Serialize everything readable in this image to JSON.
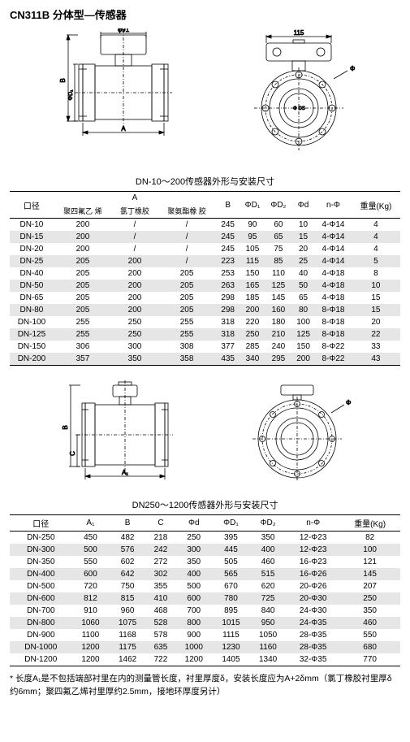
{
  "title": "CN311B 分体型—传感器",
  "diagram1": {
    "top_dim": "φ91",
    "bottom_dim": "A",
    "left_dim_outer": "B",
    "left_dim_inner": "ΦD₁"
  },
  "diagram2": {
    "top_dim": "115",
    "side_label": "Φ",
    "inner_label": "Φ DS"
  },
  "table1": {
    "title": "DN-10～200传感器外形与安装尺寸",
    "headers": {
      "c1": "口径",
      "c2_top": "A",
      "c2a": "聚四氟乙 烯",
      "c2b": "氯丁橡胶",
      "c2c": "聚氨酯橡 胶",
      "c3": "B",
      "c4": "ΦD₁",
      "c5": "ΦD₂",
      "c6": "Φd",
      "c7": "n-Φ",
      "c8": "重量(Kg)"
    },
    "rows": [
      [
        "DN-10",
        "200",
        "/",
        "/",
        "245",
        "90",
        "60",
        "10",
        "4-Φ14",
        "4"
      ],
      [
        "DN-15",
        "200",
        "/",
        "/",
        "245",
        "95",
        "65",
        "15",
        "4-Φ14",
        "4"
      ],
      [
        "DN-20",
        "200",
        "/",
        "/",
        "245",
        "105",
        "75",
        "20",
        "4-Φ14",
        "4"
      ],
      [
        "DN-25",
        "205",
        "200",
        "/",
        "223",
        "115",
        "85",
        "25",
        "4-Φ14",
        "5"
      ],
      [
        "DN-40",
        "205",
        "200",
        "205",
        "253",
        "150",
        "110",
        "40",
        "4-Φ18",
        "8"
      ],
      [
        "DN-50",
        "205",
        "200",
        "205",
        "263",
        "165",
        "125",
        "50",
        "4-Φ18",
        "10"
      ],
      [
        "DN-65",
        "205",
        "200",
        "205",
        "298",
        "185",
        "145",
        "65",
        "4-Φ18",
        "15"
      ],
      [
        "DN-80",
        "205",
        "200",
        "205",
        "298",
        "200",
        "160",
        "80",
        "8-Φ18",
        "15"
      ],
      [
        "DN-100",
        "255",
        "250",
        "255",
        "318",
        "220",
        "180",
        "100",
        "8-Φ18",
        "20"
      ],
      [
        "DN-125",
        "255",
        "250",
        "255",
        "318",
        "250",
        "210",
        "125",
        "8-Φ18",
        "22"
      ],
      [
        "DN-150",
        "306",
        "300",
        "308",
        "377",
        "285",
        "240",
        "150",
        "8-Φ22",
        "33"
      ],
      [
        "DN-200",
        "357",
        "350",
        "358",
        "435",
        "340",
        "295",
        "200",
        "8-Φ22",
        "43"
      ]
    ]
  },
  "diagram3": {
    "left_outer": "B",
    "left_inner": "C",
    "bottom": "A₁"
  },
  "diagram4": {
    "side_label": "Φ"
  },
  "table2": {
    "title": "DN250～1200传感器外形与安装尺寸",
    "headers": {
      "c1": "口径",
      "c2": "A₁",
      "c3": "B",
      "c4": "C",
      "c5": "Φd",
      "c6": "ΦD₁",
      "c7": "ΦD₂",
      "c8": "n-Φ",
      "c9": "重量(Kg)"
    },
    "rows": [
      [
        "DN-250",
        "450",
        "482",
        "218",
        "250",
        "395",
        "350",
        "12-Φ23",
        "82"
      ],
      [
        "DN-300",
        "500",
        "576",
        "242",
        "300",
        "445",
        "400",
        "12-Φ23",
        "100"
      ],
      [
        "DN-350",
        "550",
        "602",
        "272",
        "350",
        "505",
        "460",
        "16-Φ23",
        "121"
      ],
      [
        "DN-400",
        "600",
        "642",
        "302",
        "400",
        "565",
        "515",
        "16-Φ26",
        "145"
      ],
      [
        "DN-500",
        "720",
        "750",
        "355",
        "500",
        "670",
        "620",
        "20-Φ26",
        "207"
      ],
      [
        "DN-600",
        "812",
        "815",
        "410",
        "600",
        "780",
        "725",
        "20-Φ30",
        "250"
      ],
      [
        "DN-700",
        "910",
        "960",
        "468",
        "700",
        "895",
        "840",
        "24-Φ30",
        "350"
      ],
      [
        "DN-800",
        "1060",
        "1075",
        "528",
        "800",
        "1015",
        "950",
        "24-Φ35",
        "460"
      ],
      [
        "DN-900",
        "1100",
        "1168",
        "578",
        "900",
        "1115",
        "1050",
        "28-Φ35",
        "550"
      ],
      [
        "DN-1000",
        "1200",
        "1175",
        "635",
        "1000",
        "1230",
        "1160",
        "28-Φ35",
        "680"
      ],
      [
        "DN-1200",
        "1200",
        "1462",
        "722",
        "1200",
        "1405",
        "1340",
        "32-Φ35",
        "770"
      ]
    ]
  },
  "footnote": "* 长度A₁是不包括端部衬里在内的测量管长度，衬里厚度δ，安装长度应为A+2δmm（氯丁橡胶衬里厚δ约6mm；聚四氟乙烯衬里厚约2.5mm，接地环厚度另计）"
}
